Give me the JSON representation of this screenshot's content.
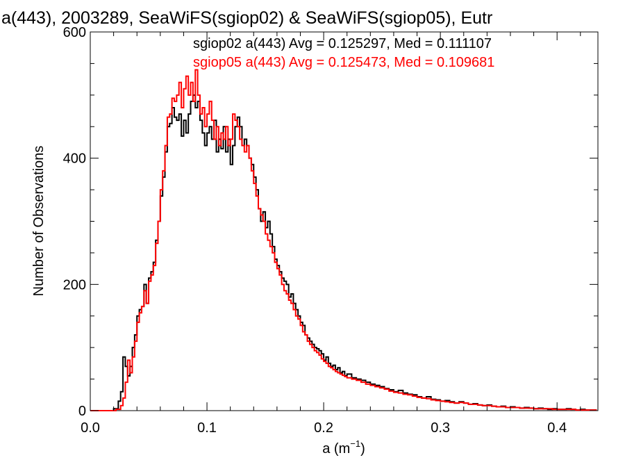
{
  "chart_data": {
    "type": "line",
    "title": "a(443), 2003289, SeaWiFS(sgiop02) & SeaWiFS(sgiop05), Eutr",
    "xlabel_base": "a (m",
    "xlabel_sup": "−1",
    "xlabel_close": ")",
    "ylabel": "Number of Observations",
    "xlim": [
      0.0,
      0.435
    ],
    "ylim": [
      0,
      600
    ],
    "xticks": [
      0.0,
      0.1,
      0.2,
      0.3,
      0.4
    ],
    "xtick_labels": [
      "0.0",
      "0.1",
      "0.2",
      "0.3",
      "0.4"
    ],
    "yticks": [
      0,
      200,
      400,
      600
    ],
    "ytick_labels": [
      "0",
      "200",
      "400",
      "600"
    ],
    "grid": false,
    "legend_placement": "top-right",
    "bin_width": 0.002,
    "series": [
      {
        "name": "sgiop02 a(443) Avg = 0.125297, Med = 0.111107",
        "color": "#000000",
        "points": [
          [
            0.0,
            0
          ],
          [
            0.016,
            0
          ],
          [
            0.02,
            3
          ],
          [
            0.024,
            15
          ],
          [
            0.026,
            30
          ],
          [
            0.028,
            85
          ],
          [
            0.03,
            70
          ],
          [
            0.032,
            55
          ],
          [
            0.034,
            70
          ],
          [
            0.036,
            100
          ],
          [
            0.038,
            120
          ],
          [
            0.04,
            150
          ],
          [
            0.042,
            160
          ],
          [
            0.044,
            165
          ],
          [
            0.046,
            200
          ],
          [
            0.048,
            170
          ],
          [
            0.05,
            210
          ],
          [
            0.052,
            220
          ],
          [
            0.054,
            235
          ],
          [
            0.056,
            270
          ],
          [
            0.058,
            300
          ],
          [
            0.06,
            340
          ],
          [
            0.062,
            370
          ],
          [
            0.064,
            410
          ],
          [
            0.066,
            450
          ],
          [
            0.068,
            455
          ],
          [
            0.07,
            480
          ],
          [
            0.072,
            465
          ],
          [
            0.074,
            460
          ],
          [
            0.076,
            470
          ],
          [
            0.078,
            435
          ],
          [
            0.08,
            460
          ],
          [
            0.082,
            440
          ],
          [
            0.084,
            470
          ],
          [
            0.086,
            490
          ],
          [
            0.088,
            500
          ],
          [
            0.09,
            480
          ],
          [
            0.092,
            490
          ],
          [
            0.094,
            460
          ],
          [
            0.096,
            440
          ],
          [
            0.098,
            420
          ],
          [
            0.1,
            440
          ],
          [
            0.102,
            450
          ],
          [
            0.104,
            430
          ],
          [
            0.106,
            460
          ],
          [
            0.108,
            410
          ],
          [
            0.11,
            430
          ],
          [
            0.112,
            415
          ],
          [
            0.114,
            450
          ],
          [
            0.116,
            410
          ],
          [
            0.118,
            430
          ],
          [
            0.12,
            390
          ],
          [
            0.122,
            420
          ],
          [
            0.124,
            450
          ],
          [
            0.126,
            465
          ],
          [
            0.128,
            450
          ],
          [
            0.13,
            420
          ],
          [
            0.132,
            430
          ],
          [
            0.134,
            420
          ],
          [
            0.136,
            400
          ],
          [
            0.138,
            390
          ],
          [
            0.14,
            370
          ],
          [
            0.142,
            350
          ],
          [
            0.144,
            320
          ],
          [
            0.146,
            300
          ],
          [
            0.148,
            315
          ],
          [
            0.15,
            290
          ],
          [
            0.152,
            300
          ],
          [
            0.154,
            280
          ],
          [
            0.156,
            260
          ],
          [
            0.158,
            240
          ],
          [
            0.16,
            230
          ],
          [
            0.162,
            220
          ],
          [
            0.164,
            210
          ],
          [
            0.166,
            205
          ],
          [
            0.168,
            200
          ],
          [
            0.17,
            180
          ],
          [
            0.172,
            185
          ],
          [
            0.174,
            170
          ],
          [
            0.176,
            160
          ],
          [
            0.178,
            150
          ],
          [
            0.18,
            140
          ],
          [
            0.182,
            135
          ],
          [
            0.184,
            120
          ],
          [
            0.186,
            115
          ],
          [
            0.188,
            110
          ],
          [
            0.19,
            105
          ],
          [
            0.192,
            100
          ],
          [
            0.194,
            98
          ],
          [
            0.196,
            95
          ],
          [
            0.198,
            90
          ],
          [
            0.2,
            80
          ],
          [
            0.202,
            85
          ],
          [
            0.204,
            75
          ],
          [
            0.206,
            70
          ],
          [
            0.208,
            72
          ],
          [
            0.21,
            65
          ],
          [
            0.212,
            68
          ],
          [
            0.214,
            60
          ],
          [
            0.216,
            62
          ],
          [
            0.218,
            55
          ],
          [
            0.22,
            58
          ],
          [
            0.224,
            52
          ],
          [
            0.228,
            50
          ],
          [
            0.232,
            48
          ],
          [
            0.236,
            45
          ],
          [
            0.24,
            42
          ],
          [
            0.244,
            40
          ],
          [
            0.248,
            38
          ],
          [
            0.252,
            35
          ],
          [
            0.256,
            33
          ],
          [
            0.26,
            30
          ],
          [
            0.264,
            32
          ],
          [
            0.268,
            28
          ],
          [
            0.272,
            26
          ],
          [
            0.276,
            25
          ],
          [
            0.28,
            22
          ],
          [
            0.284,
            20
          ],
          [
            0.288,
            22
          ],
          [
            0.292,
            18
          ],
          [
            0.296,
            17
          ],
          [
            0.3,
            15
          ],
          [
            0.304,
            16
          ],
          [
            0.308,
            14
          ],
          [
            0.312,
            12
          ],
          [
            0.316,
            14
          ],
          [
            0.32,
            12
          ],
          [
            0.324,
            10
          ],
          [
            0.328,
            11
          ],
          [
            0.332,
            9
          ],
          [
            0.336,
            8
          ],
          [
            0.34,
            9
          ],
          [
            0.344,
            7
          ],
          [
            0.348,
            6
          ],
          [
            0.352,
            7
          ],
          [
            0.356,
            5
          ],
          [
            0.36,
            6
          ],
          [
            0.364,
            5
          ],
          [
            0.368,
            4
          ],
          [
            0.372,
            5
          ],
          [
            0.376,
            4
          ],
          [
            0.38,
            3
          ],
          [
            0.384,
            4
          ],
          [
            0.388,
            3
          ],
          [
            0.392,
            2
          ],
          [
            0.396,
            3
          ],
          [
            0.4,
            2
          ],
          [
            0.404,
            2
          ],
          [
            0.408,
            3
          ],
          [
            0.412,
            2
          ],
          [
            0.416,
            1
          ],
          [
            0.42,
            2
          ],
          [
            0.424,
            1
          ],
          [
            0.428,
            1
          ],
          [
            0.432,
            1
          ]
        ]
      },
      {
        "name": "sgiop05 a(443) Avg = 0.125473, Med = 0.109681",
        "color": "#ff0000",
        "points": [
          [
            0.0,
            0
          ],
          [
            0.018,
            0
          ],
          [
            0.022,
            2
          ],
          [
            0.026,
            8
          ],
          [
            0.028,
            20
          ],
          [
            0.03,
            45
          ],
          [
            0.032,
            80
          ],
          [
            0.034,
            60
          ],
          [
            0.036,
            85
          ],
          [
            0.038,
            110
          ],
          [
            0.04,
            140
          ],
          [
            0.042,
            155
          ],
          [
            0.044,
            165
          ],
          [
            0.046,
            190
          ],
          [
            0.048,
            170
          ],
          [
            0.05,
            205
          ],
          [
            0.052,
            215
          ],
          [
            0.054,
            230
          ],
          [
            0.056,
            265
          ],
          [
            0.058,
            300
          ],
          [
            0.06,
            350
          ],
          [
            0.062,
            380
          ],
          [
            0.064,
            420
          ],
          [
            0.066,
            465
          ],
          [
            0.068,
            470
          ],
          [
            0.07,
            495
          ],
          [
            0.072,
            490
          ],
          [
            0.074,
            500
          ],
          [
            0.076,
            520
          ],
          [
            0.078,
            480
          ],
          [
            0.08,
            510
          ],
          [
            0.082,
            530
          ],
          [
            0.084,
            500
          ],
          [
            0.086,
            520
          ],
          [
            0.088,
            490
          ],
          [
            0.09,
            540
          ],
          [
            0.092,
            500
          ],
          [
            0.094,
            470
          ],
          [
            0.096,
            480
          ],
          [
            0.098,
            450
          ],
          [
            0.1,
            470
          ],
          [
            0.102,
            490
          ],
          [
            0.104,
            460
          ],
          [
            0.106,
            430
          ],
          [
            0.108,
            450
          ],
          [
            0.11,
            420
          ],
          [
            0.112,
            440
          ],
          [
            0.114,
            430
          ],
          [
            0.116,
            450
          ],
          [
            0.118,
            420
          ],
          [
            0.12,
            430
          ],
          [
            0.122,
            470
          ],
          [
            0.124,
            460
          ],
          [
            0.126,
            450
          ],
          [
            0.128,
            430
          ],
          [
            0.13,
            420
          ],
          [
            0.132,
            410
          ],
          [
            0.134,
            420
          ],
          [
            0.136,
            400
          ],
          [
            0.138,
            380
          ],
          [
            0.14,
            360
          ],
          [
            0.142,
            340
          ],
          [
            0.144,
            320
          ],
          [
            0.146,
            310
          ],
          [
            0.148,
            300
          ],
          [
            0.15,
            280
          ],
          [
            0.152,
            270
          ],
          [
            0.154,
            260
          ],
          [
            0.156,
            250
          ],
          [
            0.158,
            235
          ],
          [
            0.16,
            225
          ],
          [
            0.162,
            215
          ],
          [
            0.164,
            200
          ],
          [
            0.166,
            190
          ],
          [
            0.168,
            185
          ],
          [
            0.17,
            175
          ],
          [
            0.172,
            170
          ],
          [
            0.174,
            160
          ],
          [
            0.176,
            150
          ],
          [
            0.178,
            145
          ],
          [
            0.18,
            135
          ],
          [
            0.182,
            125
          ],
          [
            0.184,
            120
          ],
          [
            0.186,
            110
          ],
          [
            0.188,
            105
          ],
          [
            0.19,
            100
          ],
          [
            0.192,
            95
          ],
          [
            0.194,
            92
          ],
          [
            0.196,
            88
          ],
          [
            0.198,
            82
          ],
          [
            0.2,
            78
          ],
          [
            0.202,
            75
          ],
          [
            0.204,
            70
          ],
          [
            0.206,
            68
          ],
          [
            0.208,
            65
          ],
          [
            0.21,
            62
          ],
          [
            0.212,
            60
          ],
          [
            0.214,
            58
          ],
          [
            0.216,
            56
          ],
          [
            0.218,
            54
          ],
          [
            0.22,
            52
          ],
          [
            0.224,
            50
          ],
          [
            0.228,
            48
          ],
          [
            0.232,
            45
          ],
          [
            0.236,
            42
          ],
          [
            0.24,
            40
          ],
          [
            0.244,
            38
          ],
          [
            0.248,
            36
          ],
          [
            0.252,
            34
          ],
          [
            0.256,
            31
          ],
          [
            0.26,
            29
          ],
          [
            0.264,
            28
          ],
          [
            0.268,
            26
          ],
          [
            0.272,
            25
          ],
          [
            0.276,
            23
          ],
          [
            0.28,
            21
          ],
          [
            0.284,
            20
          ],
          [
            0.288,
            19
          ],
          [
            0.292,
            17
          ],
          [
            0.296,
            16
          ],
          [
            0.3,
            15
          ],
          [
            0.304,
            14
          ],
          [
            0.308,
            13
          ],
          [
            0.312,
            12
          ],
          [
            0.316,
            13
          ],
          [
            0.32,
            12
          ],
          [
            0.324,
            10
          ],
          [
            0.328,
            10
          ],
          [
            0.332,
            9
          ],
          [
            0.336,
            8
          ],
          [
            0.34,
            8
          ],
          [
            0.344,
            7
          ],
          [
            0.348,
            6
          ],
          [
            0.352,
            6
          ],
          [
            0.356,
            5
          ],
          [
            0.36,
            5
          ],
          [
            0.364,
            5
          ],
          [
            0.368,
            4
          ],
          [
            0.372,
            4
          ],
          [
            0.376,
            4
          ],
          [
            0.38,
            3
          ],
          [
            0.384,
            3
          ],
          [
            0.388,
            3
          ],
          [
            0.392,
            3
          ],
          [
            0.396,
            2
          ],
          [
            0.4,
            2
          ],
          [
            0.404,
            2
          ],
          [
            0.408,
            2
          ],
          [
            0.412,
            2
          ],
          [
            0.416,
            1
          ],
          [
            0.42,
            1
          ],
          [
            0.424,
            1
          ],
          [
            0.428,
            1
          ],
          [
            0.432,
            1
          ]
        ]
      }
    ]
  }
}
